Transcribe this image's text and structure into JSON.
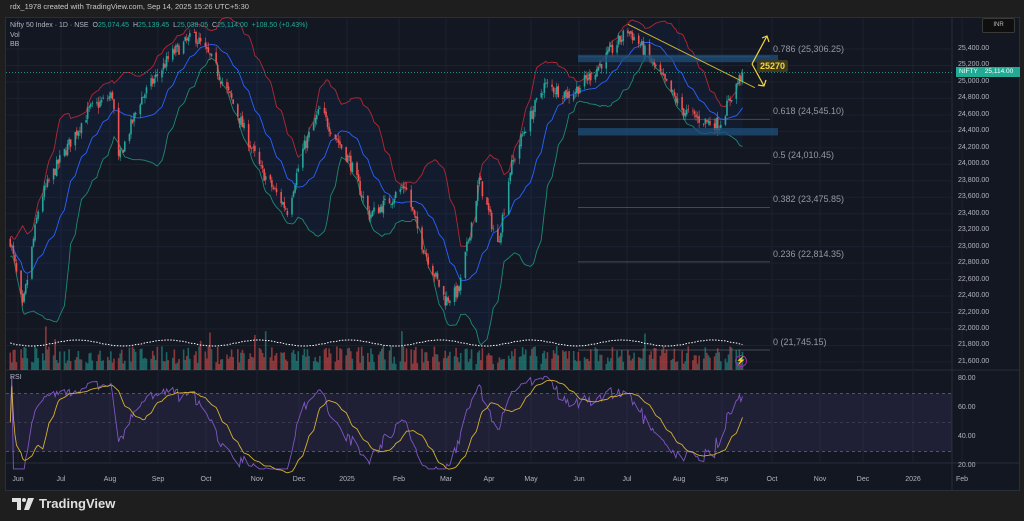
{
  "header": {
    "attribution": "rdx_1978 created with TradingView.com, Sep 14, 2025 15:26 UTC+5:30"
  },
  "legend": {
    "symbol": "Nifty 50 Index · 1D · NSE",
    "o_label": "O",
    "o": "25,074.45",
    "h_label": "H",
    "h": "25,139.45",
    "l_label": "L",
    "l": "25,038.05",
    "c_label": "C",
    "c": "25,114.00",
    "change": "+108.50 (+0.43%)",
    "vol": "Vol",
    "bb": "BB"
  },
  "price_axis": {
    "currency": "INR",
    "symbol_badge": "NIFTY",
    "last_price": "25,114.00",
    "ticks": [
      "25,400.00",
      "25,200.00",
      "25,000.00",
      "24,800.00",
      "24,600.00",
      "24,400.00",
      "24,200.00",
      "24,000.00",
      "23,800.00",
      "23,600.00",
      "23,400.00",
      "23,200.00",
      "23,000.00",
      "22,800.00",
      "22,600.00",
      "22,400.00",
      "22,200.00",
      "22,000.00",
      "21,800.00",
      "21,600.00"
    ]
  },
  "rsi": {
    "label": "RSI",
    "ticks": [
      "80.00",
      "60.00",
      "40.00",
      "20.00"
    ]
  },
  "time_axis": {
    "ticks": [
      "Jun",
      "Jul",
      "Aug",
      "Sep",
      "Oct",
      "Nov",
      "Dec",
      "2025",
      "Feb",
      "Mar",
      "Apr",
      "May",
      "Jun",
      "Jul",
      "Aug",
      "Sep",
      "Oct",
      "Nov",
      "Dec",
      "2026",
      "Feb"
    ]
  },
  "annotations": {
    "target_label": "25270",
    "fib_levels": [
      {
        "text": "0.786 (25,306.25)",
        "value": 25306.25
      },
      {
        "text": "0.618 (24,545.10)",
        "value": 24545.1
      },
      {
        "text": "0.5 (24,010.45)",
        "value": 24010.45
      },
      {
        "text": "0.382 (23,475.85)",
        "value": 23475.85
      },
      {
        "text": "0.236 (22,814.35)",
        "value": 22814.35
      },
      {
        "text": "0 (21,745.15)",
        "value": 21745.15
      }
    ],
    "zones": [
      [
        25240,
        25330
      ],
      [
        24350,
        24440
      ]
    ],
    "trendline": [
      {
        "date": "2025-06-30",
        "price": 25700
      },
      {
        "date": "2025-09-20",
        "price": 24930
      }
    ]
  },
  "logo": {
    "text": "TradingView"
  },
  "colors": {
    "up": "#26a69a",
    "down": "#ef5350",
    "bb_upper": "#b22833",
    "bb_lower": "#1e8a6e",
    "bb_basis": "#2962ff",
    "rsi": "#7e57c2",
    "rsi_ma": "#d4b030",
    "annotation": "#f5d742",
    "zone": "#1e4f7a"
  },
  "chart_data": {
    "type": "candlestick",
    "title": "Nifty 50 Index · 1D · NSE",
    "ylim": [
      21600,
      25400
    ],
    "rsi_ylim": [
      20,
      80
    ],
    "rsi_bands": [
      30,
      70
    ],
    "xlim": [
      "2024-05-26",
      "2026-02-10"
    ],
    "last_close": 25114.0,
    "key_closes": [
      {
        "date": "2024-05-27",
        "close": 23080
      },
      {
        "date": "2024-06-04",
        "close": 22250
      },
      {
        "date": "2024-06-15",
        "close": 23560
      },
      {
        "date": "2024-06-28",
        "close": 24050
      },
      {
        "date": "2024-07-17",
        "close": 24660
      },
      {
        "date": "2024-08-01",
        "close": 24840
      },
      {
        "date": "2024-08-05",
        "close": 24050
      },
      {
        "date": "2024-08-19",
        "close": 24780
      },
      {
        "date": "2024-09-08",
        "close": 25330
      },
      {
        "date": "2024-09-23",
        "close": 25570
      },
      {
        "date": "2024-10-04",
        "close": 25270
      },
      {
        "date": "2024-10-17",
        "close": 24780
      },
      {
        "date": "2024-11-05",
        "close": 23930
      },
      {
        "date": "2024-11-22",
        "close": 23440
      },
      {
        "date": "2024-12-02",
        "close": 24170
      },
      {
        "date": "2024-12-13",
        "close": 24660
      },
      {
        "date": "2025-01-01",
        "close": 24050
      },
      {
        "date": "2025-01-14",
        "close": 23380
      },
      {
        "date": "2025-01-27",
        "close": 23560
      },
      {
        "date": "2025-02-06",
        "close": 23750
      },
      {
        "date": "2025-02-16",
        "close": 23080
      },
      {
        "date": "2025-03-04",
        "close": 22350
      },
      {
        "date": "2025-03-13",
        "close": 22470
      },
      {
        "date": "2025-03-26",
        "close": 23810
      },
      {
        "date": "2025-04-07",
        "close": 23020
      },
      {
        "date": "2025-04-15",
        "close": 23930
      },
      {
        "date": "2025-04-24",
        "close": 24410
      },
      {
        "date": "2025-05-07",
        "close": 24960
      },
      {
        "date": "2025-05-24",
        "close": 24840
      },
      {
        "date": "2025-06-09",
        "close": 25140
      },
      {
        "date": "2025-06-30",
        "close": 25630
      },
      {
        "date": "2025-07-08",
        "close": 25450
      },
      {
        "date": "2025-07-21",
        "close": 25080
      },
      {
        "date": "2025-08-04",
        "close": 24660
      },
      {
        "date": "2025-08-16",
        "close": 24540
      },
      {
        "date": "2025-08-28",
        "close": 24480
      },
      {
        "date": "2025-09-05",
        "close": 24840
      },
      {
        "date": "2025-09-12",
        "close": 25114
      }
    ]
  }
}
